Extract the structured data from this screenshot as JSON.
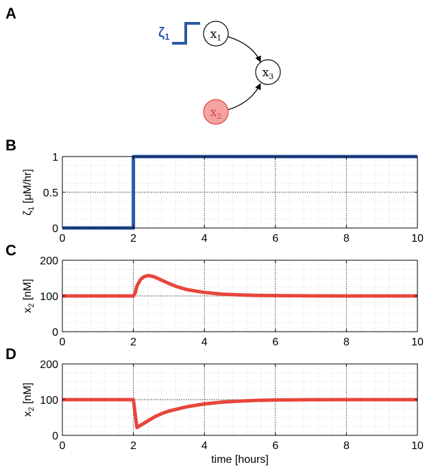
{
  "panels": [
    "A",
    "B",
    "C",
    "D"
  ],
  "diagram": {
    "stimulus": {
      "label": "ζ",
      "sub": "1",
      "color": "#2a5aa8"
    },
    "nodes": [
      {
        "id": "x1",
        "label": "x",
        "sub": "1",
        "fill": "#ffffff",
        "stroke": "#000000",
        "text_color": "#000000"
      },
      {
        "id": "x2",
        "label": "x",
        "sub": "2",
        "fill": "#f4a3a3",
        "stroke": "#d94436",
        "text_color": "#d94436"
      },
      {
        "id": "x3",
        "label": "x",
        "sub": "3",
        "fill": "#ffffff",
        "stroke": "#000000",
        "text_color": "#000000"
      }
    ],
    "edges": [
      {
        "from": "x1",
        "to": "x3"
      },
      {
        "from": "x2",
        "to": "x3"
      }
    ]
  },
  "chart_data": [
    {
      "type": "line",
      "panel": "B",
      "ylabel": {
        "main": "ζ",
        "sub": "1",
        "rest": " [μM/hr]"
      },
      "xlim": [
        0,
        10
      ],
      "ylim": [
        0,
        1
      ],
      "yticks": [
        0,
        0.5,
        1
      ],
      "ytick_labels": [
        "0",
        "0.5",
        "1"
      ],
      "xticks": [
        0,
        2,
        4,
        6,
        8,
        10
      ],
      "xtick_labels": [
        "0",
        "2",
        "4",
        "6",
        "8",
        "10"
      ],
      "grid": true,
      "series": [
        {
          "color": "#2a5aa8",
          "x": [
            0,
            2,
            2,
            10
          ],
          "y": [
            0,
            0,
            1,
            1
          ]
        }
      ]
    },
    {
      "type": "line",
      "panel": "C",
      "ylabel": {
        "main": "x",
        "sub": "2",
        "rest": " [nM]"
      },
      "xlim": [
        0,
        10
      ],
      "ylim": [
        0,
        200
      ],
      "yticks": [
        0,
        100,
        200
      ],
      "ytick_labels": [
        "0",
        "100",
        "200"
      ],
      "xticks": [
        0,
        2,
        4,
        6,
        8,
        10
      ],
      "xtick_labels": [
        "0",
        "2",
        "4",
        "6",
        "8",
        "10"
      ],
      "grid": true,
      "series": [
        {
          "color": "#e8453c",
          "x": [
            0,
            2,
            2.05,
            2.1,
            2.2,
            2.3,
            2.4,
            2.5,
            2.6,
            2.8,
            3.0,
            3.2,
            3.5,
            3.8,
            4.0,
            4.5,
            5.0,
            5.5,
            6.0,
            7.0,
            8.0,
            10
          ],
          "y": [
            100,
            100,
            108,
            128,
            146,
            154,
            157,
            156,
            153,
            144,
            135,
            127,
            118,
            113,
            110,
            105,
            103,
            101.5,
            101,
            100.3,
            100,
            100
          ]
        }
      ]
    },
    {
      "type": "line",
      "panel": "D",
      "ylabel": {
        "main": "x",
        "sub": "2",
        "rest": " [nM]"
      },
      "xlabel": "time [hours]",
      "xlim": [
        0,
        10
      ],
      "ylim": [
        0,
        200
      ],
      "yticks": [
        0,
        100,
        200
      ],
      "ytick_labels": [
        "0",
        "100",
        "200"
      ],
      "xticks": [
        0,
        2,
        4,
        6,
        8,
        10
      ],
      "xtick_labels": [
        "0",
        "2",
        "4",
        "6",
        "8",
        "10"
      ],
      "grid": true,
      "series": [
        {
          "color": "#e8453c",
          "x": [
            0,
            2,
            2.05,
            2.1,
            2.2,
            2.4,
            2.6,
            2.8,
            3.0,
            3.5,
            4.0,
            4.5,
            5.0,
            5.5,
            6.0,
            7.0,
            8.0,
            10
          ],
          "y": [
            100,
            100,
            60,
            22,
            28,
            40,
            52,
            61,
            68,
            80,
            88,
            93,
            96,
            98,
            99,
            99.7,
            100,
            100
          ]
        }
      ]
    }
  ]
}
